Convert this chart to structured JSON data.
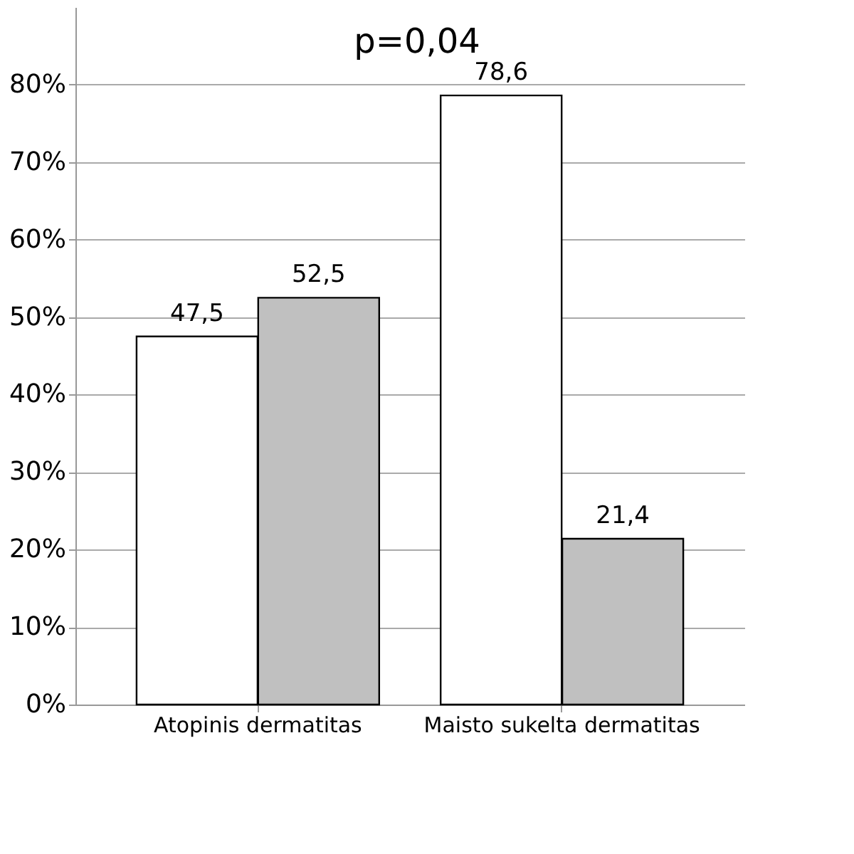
{
  "chart_data": {
    "type": "bar",
    "categories": [
      "Atopinis dermatitas",
      "Maisto sukelta dermatitas"
    ],
    "series": [
      {
        "color": "#ffffff",
        "values": [
          47.5,
          78.6
        ],
        "value_labels": [
          "47,5",
          "78,6"
        ]
      },
      {
        "color": "#c0c0c0",
        "values": [
          52.5,
          21.4
        ],
        "value_labels": [
          "52,5",
          "21,4"
        ]
      }
    ],
    "ylim": [
      0,
      90
    ],
    "yticks": [
      {
        "value": 0,
        "label": "0%"
      },
      {
        "value": 10,
        "label": "10%"
      },
      {
        "value": 20,
        "label": "20%"
      },
      {
        "value": 30,
        "label": "30%"
      },
      {
        "value": 40,
        "label": "40%"
      },
      {
        "value": 50,
        "label": "50%"
      },
      {
        "value": 60,
        "label": "60%"
      },
      {
        "value": 70,
        "label": "70%"
      },
      {
        "value": 80,
        "label": "80%"
      }
    ],
    "grid": "y",
    "annotations": [
      "p=0,04"
    ]
  }
}
